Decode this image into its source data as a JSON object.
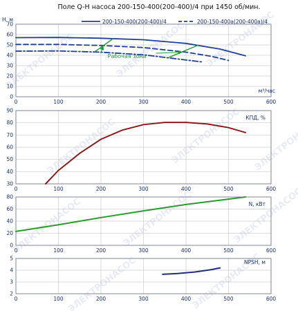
{
  "title": "Поле Q-H насоса 200-150-400(200-400)/4 при 1450 об/мин.",
  "colors": {
    "series_main": "#1f3f96",
    "work_zone": "#1a9a3a",
    "efficiency": "#8b1a1a",
    "power": "#2a9a2a",
    "npsh": "#1e2e78",
    "axis_text": "#1a2d6b",
    "grid": "#c9cbd2"
  },
  "watermark_text": "ЭЛЕКТРОНАСОС",
  "chart_data": [
    {
      "type": "line",
      "panel": "Q-H",
      "ylabel": "H, м",
      "xlabel": "м³/час",
      "xlim": [
        0,
        600
      ],
      "ylim": [
        0,
        70
      ],
      "x_ticks": [
        0,
        100,
        200,
        300,
        400,
        500,
        600
      ],
      "y_ticks": [
        0,
        10,
        20,
        30,
        40,
        50,
        60,
        70
      ],
      "grid": true,
      "legend_position": "top",
      "series": [
        {
          "name": "200-150-400(200-400)/4",
          "style": "solid",
          "color": "#1f3f96",
          "points": [
            [
              0,
              57
            ],
            [
              100,
              57.2
            ],
            [
              200,
              56.5
            ],
            [
              300,
              55
            ],
            [
              400,
              51.5
            ],
            [
              480,
              46
            ],
            [
              540,
              39.5
            ]
          ]
        },
        {
          "name": "200-150-400a(200-400a)/4",
          "style": "dashed",
          "color": "#1f3f96",
          "points": [
            [
              0,
              50.5
            ],
            [
              100,
              50.5
            ],
            [
              200,
              49.5
            ],
            [
              300,
              47.5
            ],
            [
              400,
              43
            ],
            [
              460,
              39
            ],
            [
              500,
              35
            ]
          ]
        },
        {
          "style": "dashdot",
          "color": "#1f3f96",
          "points": [
            [
              0,
              44
            ],
            [
              100,
              44.2
            ],
            [
              200,
              43
            ],
            [
              300,
              40.5
            ],
            [
              380,
              36.5
            ],
            [
              440,
              33.5
            ]
          ]
        }
      ],
      "work_zone": {
        "label": "Рабочая зона",
        "color": "#1a9a3a",
        "segments": [
          [
            [
              185,
              43.2
            ],
            [
              230,
              56.5
            ]
          ],
          [
            [
              360,
              38
            ],
            [
              430,
              50
            ]
          ]
        ]
      }
    },
    {
      "type": "line",
      "panel": "efficiency",
      "series_label": "КПД, %",
      "xlim": [
        0,
        600
      ],
      "ylim": [
        30,
        90
      ],
      "x_ticks": [
        0,
        100,
        200,
        300,
        400,
        500,
        600
      ],
      "y_ticks": [
        30,
        40,
        50,
        60,
        70,
        80,
        90
      ],
      "grid": true,
      "series": [
        {
          "name": "КПД, %",
          "color": "#8b1a1a",
          "points": [
            [
              70,
              30
            ],
            [
              100,
              41
            ],
            [
              150,
              55
            ],
            [
              200,
              66.5
            ],
            [
              250,
              74
            ],
            [
              300,
              78.5
            ],
            [
              350,
              80.3
            ],
            [
              400,
              80.3
            ],
            [
              450,
              79
            ],
            [
              500,
              76
            ],
            [
              540,
              72
            ]
          ]
        }
      ]
    },
    {
      "type": "line",
      "panel": "power",
      "series_label": "N, кВт",
      "xlim": [
        0,
        600
      ],
      "ylim": [
        0,
        80
      ],
      "x_ticks": [
        0,
        100,
        200,
        300,
        400,
        500,
        600
      ],
      "y_ticks": [
        0,
        20,
        40,
        60,
        80
      ],
      "grid": true,
      "series": [
        {
          "name": "N, кВт",
          "color": "#2a9a2a",
          "points": [
            [
              0,
              23
            ],
            [
              100,
              34
            ],
            [
              200,
              46
            ],
            [
              300,
              57
            ],
            [
              400,
              67.5
            ],
            [
              500,
              76.5
            ],
            [
              540,
              80
            ]
          ]
        }
      ]
    },
    {
      "type": "line",
      "panel": "NPSH",
      "series_label": "NPSH, м",
      "xlim": [
        0,
        600
      ],
      "ylim": [
        2,
        5
      ],
      "x_ticks": [
        0,
        100,
        200,
        300,
        400,
        500,
        600
      ],
      "y_ticks": [
        2,
        3,
        4,
        5
      ],
      "grid": true,
      "series": [
        {
          "name": "NPSH, м",
          "color": "#1e2e78",
          "points": [
            [
              345,
              3.65
            ],
            [
              380,
              3.72
            ],
            [
              420,
              3.85
            ],
            [
              460,
              4.05
            ],
            [
              480,
              4.2
            ]
          ]
        }
      ]
    }
  ]
}
